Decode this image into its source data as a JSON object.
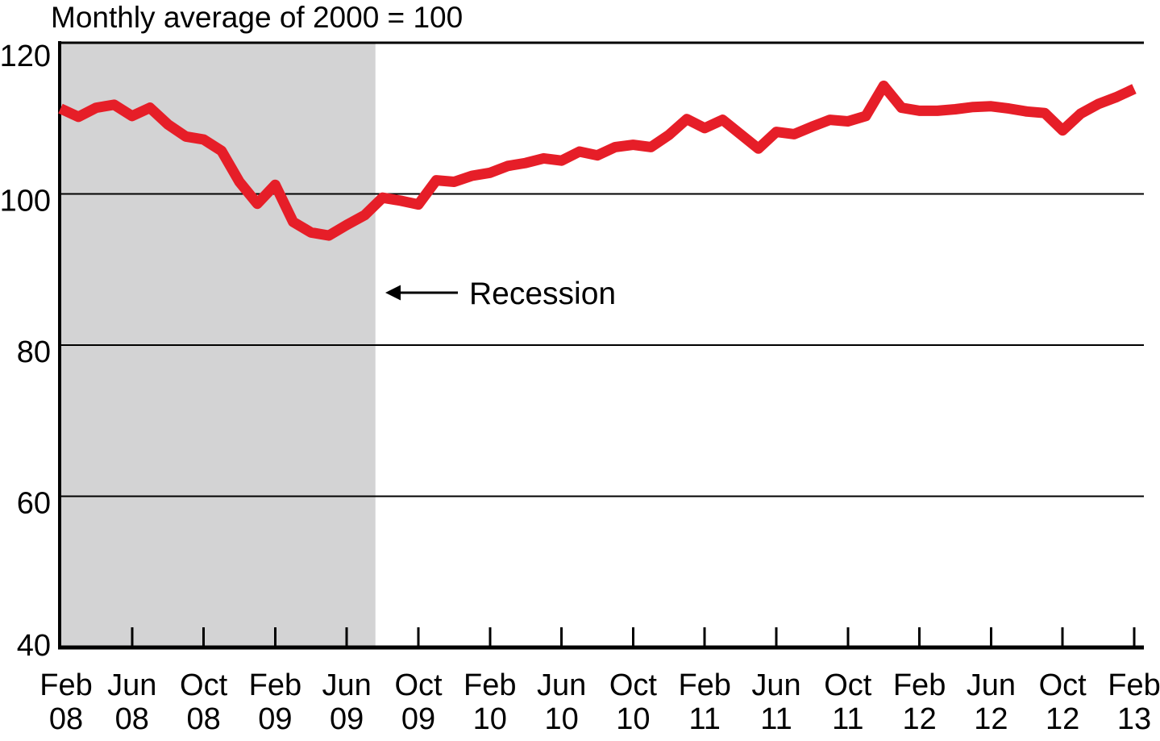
{
  "page": {
    "background": "#ffffff"
  },
  "header": {
    "title": "Monthly average of 2000 = 100"
  },
  "annotation": {
    "text": "Recession",
    "arrow_icon": "left-arrow",
    "points_to": "right edge of recession shading"
  },
  "colors": {
    "line": "#e61e28",
    "recession_band": "#d3d3d4",
    "axis": "#000000",
    "text": "#000000",
    "background": "#ffffff"
  },
  "y_axis": {
    "tick_labels": [
      "120",
      "100",
      "80",
      "60",
      "40"
    ]
  },
  "x_axis": {
    "tick_labels": [
      [
        "Feb",
        "08"
      ],
      [
        "Jun",
        "08"
      ],
      [
        "Oct",
        "08"
      ],
      [
        "Feb",
        "09"
      ],
      [
        "Jun",
        "09"
      ],
      [
        "Oct",
        "09"
      ],
      [
        "Feb",
        "10"
      ],
      [
        "Jun",
        "10"
      ],
      [
        "Oct",
        "10"
      ],
      [
        "Feb",
        "11"
      ],
      [
        "Jun",
        "11"
      ],
      [
        "Oct",
        "11"
      ],
      [
        "Feb",
        "12"
      ],
      [
        "Jun",
        "12"
      ],
      [
        "Oct",
        "12"
      ],
      [
        "Feb",
        "13"
      ]
    ],
    "tick_interval_months": 4
  },
  "chart_data": {
    "type": "line",
    "title": "Monthly average of 2000 = 100",
    "xlabel": "",
    "ylabel": "",
    "ylim": [
      40,
      120
    ],
    "y_ticks": [
      120,
      100,
      80,
      60,
      40
    ],
    "grid": "horizontal",
    "legend": "none",
    "x_start": "Feb 2008",
    "x_end": "Feb 2013",
    "frequency": "monthly",
    "months": [
      "Feb 2008",
      "Mar 2008",
      "Apr 2008",
      "May 2008",
      "Jun 2008",
      "Jul 2008",
      "Aug 2008",
      "Sep 2008",
      "Oct 2008",
      "Nov 2008",
      "Dec 2008",
      "Jan 2009",
      "Feb 2009",
      "Mar 2009",
      "Apr 2009",
      "May 2009",
      "Jun 2009",
      "Jul 2009",
      "Aug 2009",
      "Sep 2009",
      "Oct 2009",
      "Nov 2009",
      "Dec 2009",
      "Jan 2010",
      "Feb 2010",
      "Mar 2010",
      "Apr 2010",
      "May 2010",
      "Jun 2010",
      "Jul 2010",
      "Aug 2010",
      "Sep 2010",
      "Oct 2010",
      "Nov 2010",
      "Dec 2010",
      "Jan 2011",
      "Feb 2011",
      "Mar 2011",
      "Apr 2011",
      "May 2011",
      "Jun 2011",
      "Jul 2011",
      "Aug 2011",
      "Sep 2011",
      "Oct 2011",
      "Nov 2011",
      "Dec 2011",
      "Jan 2012",
      "Feb 2012",
      "Mar 2012",
      "Apr 2012",
      "May 2012",
      "Jun 2012",
      "Jul 2012",
      "Aug 2012",
      "Sep 2012",
      "Oct 2012",
      "Nov 2012",
      "Dec 2012",
      "Jan 2013",
      "Feb 2013"
    ],
    "series": [
      {
        "name": "index",
        "values": [
          111.3,
          110.2,
          111.4,
          111.8,
          110.3,
          111.4,
          109.2,
          107.6,
          107.2,
          105.7,
          101.6,
          98.7,
          101.2,
          96.3,
          94.9,
          94.5,
          95.9,
          97.2,
          99.5,
          99.1,
          98.6,
          101.8,
          101.6,
          102.4,
          102.8,
          103.7,
          104.1,
          104.7,
          104.4,
          105.6,
          105.1,
          106.2,
          106.5,
          106.2,
          107.8,
          109.9,
          108.7,
          109.8,
          107.9,
          106.0,
          108.2,
          107.9,
          108.9,
          109.8,
          109.6,
          110.3,
          114.3,
          111.4,
          111.0,
          111.0,
          111.2,
          111.5,
          111.6,
          111.3,
          110.9,
          110.7,
          108.4,
          110.6,
          111.9,
          112.8,
          113.9
        ]
      }
    ],
    "recession_band": {
      "starts_at_plot_left_edge": true,
      "start_month_index": 0,
      "end_month_index": 17.6,
      "color": "#d3d3d4"
    }
  }
}
